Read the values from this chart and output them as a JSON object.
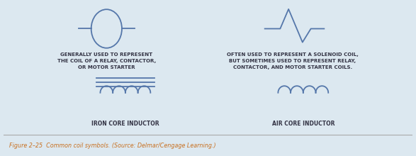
{
  "bg_main": "#cde2f0",
  "bg_outer": "#dce8f0",
  "bg_caption": "#ffffff",
  "caption_color": "#c87020",
  "caption_line_color": "#aaaaaa",
  "symbol_color": "#5577aa",
  "text_color": "#333344",
  "title": "Figure 2–25  Common coil symbols. (Source: Delmar/Cengage Learning.)",
  "left_desc": "GENERALLY USED TO REPRESENT\nTHE COIL OF A RELAY, CONTACTOR,\nOR MOTOR STARTER",
  "right_desc": "OFTEN USED TO REPRESENT A SOLENOID COIL,\nBUT SOMETIMES USED TO REPRESENT RELAY,\nCONTACTOR, AND MOTOR STARTER COILS.",
  "left_label": "IRON CORE INDUCTOR",
  "right_label": "AIR CORE INDUCTOR",
  "figsize": [
    5.87,
    2.2
  ],
  "dpi": 100
}
